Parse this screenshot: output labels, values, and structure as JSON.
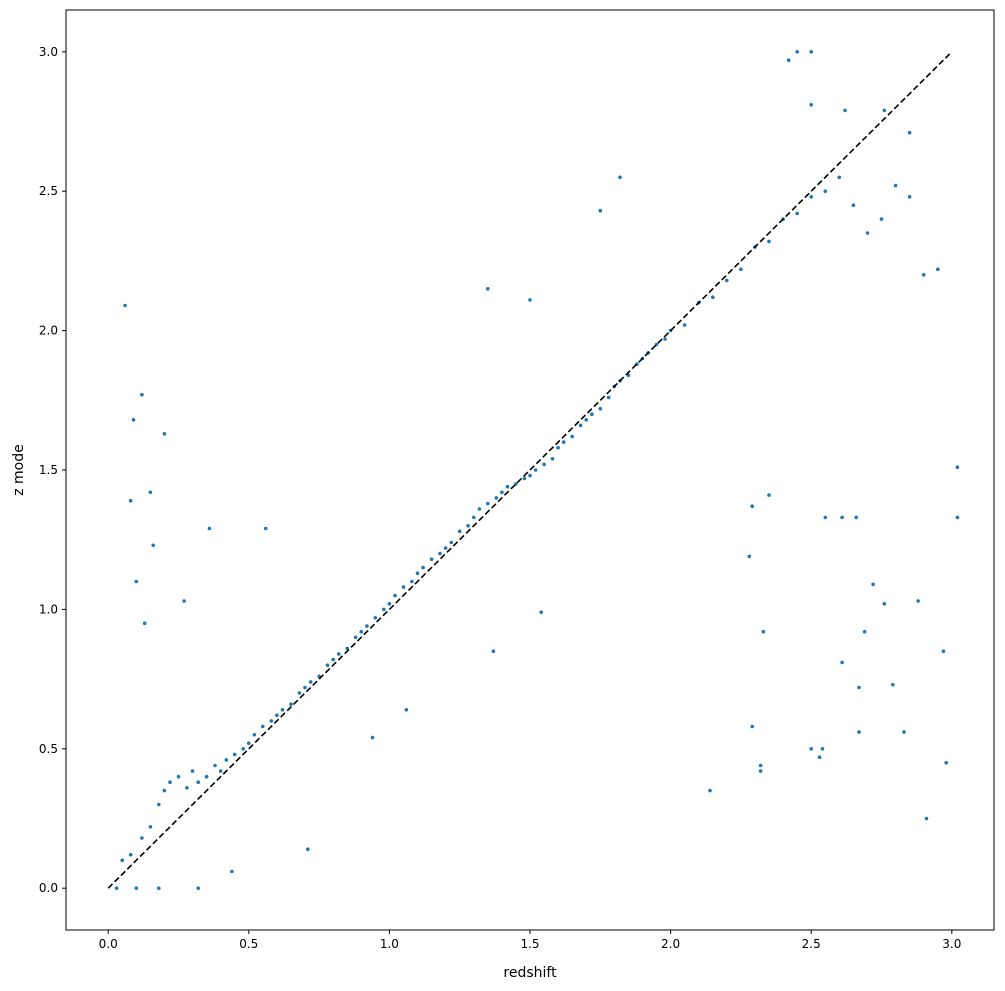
{
  "chart_data": {
    "type": "scatter",
    "title": "",
    "xlabel": "redshift",
    "ylabel": "z mode",
    "xlim": [
      -0.15,
      3.15
    ],
    "ylim": [
      -0.15,
      3.15
    ],
    "x_ticks": [
      0.0,
      0.5,
      1.0,
      1.5,
      2.0,
      2.5,
      3.0
    ],
    "y_ticks": [
      0.0,
      0.5,
      1.0,
      1.5,
      2.0,
      2.5,
      3.0
    ],
    "x_tick_labels": [
      "0.0",
      "0.5",
      "1.0",
      "1.5",
      "2.0",
      "2.5",
      "3.0"
    ],
    "y_tick_labels": [
      "0.0",
      "0.5",
      "1.0",
      "1.5",
      "2.0",
      "2.5",
      "3.0"
    ],
    "grid": false,
    "legend": "none",
    "series": [
      {
        "kind": "points",
        "color": "#1f77b4",
        "points": [
          [
            0.05,
            0.1
          ],
          [
            0.08,
            0.12
          ],
          [
            0.12,
            0.18
          ],
          [
            0.15,
            0.22
          ],
          [
            0.18,
            0.3
          ],
          [
            0.2,
            0.35
          ],
          [
            0.22,
            0.38
          ],
          [
            0.25,
            0.4
          ],
          [
            0.28,
            0.36
          ],
          [
            0.3,
            0.42
          ],
          [
            0.32,
            0.38
          ],
          [
            0.35,
            0.4
          ],
          [
            0.38,
            0.44
          ],
          [
            0.4,
            0.42
          ],
          [
            0.42,
            0.46
          ],
          [
            0.45,
            0.48
          ],
          [
            0.48,
            0.5
          ],
          [
            0.5,
            0.52
          ],
          [
            0.52,
            0.55
          ],
          [
            0.55,
            0.58
          ],
          [
            0.58,
            0.6
          ],
          [
            0.6,
            0.62
          ],
          [
            0.62,
            0.64
          ],
          [
            0.65,
            0.66
          ],
          [
            0.68,
            0.7
          ],
          [
            0.7,
            0.72
          ],
          [
            0.72,
            0.74
          ],
          [
            0.75,
            0.76
          ],
          [
            0.78,
            0.8
          ],
          [
            0.8,
            0.82
          ],
          [
            0.82,
            0.84
          ],
          [
            0.85,
            0.86
          ],
          [
            0.88,
            0.9
          ],
          [
            0.9,
            0.92
          ],
          [
            0.92,
            0.94
          ],
          [
            0.95,
            0.97
          ],
          [
            0.98,
            1.0
          ],
          [
            1.0,
            1.02
          ],
          [
            1.02,
            1.05
          ],
          [
            1.05,
            1.08
          ],
          [
            1.08,
            1.1
          ],
          [
            1.1,
            1.13
          ],
          [
            1.12,
            1.15
          ],
          [
            1.15,
            1.18
          ],
          [
            1.18,
            1.2
          ],
          [
            1.2,
            1.22
          ],
          [
            1.22,
            1.24
          ],
          [
            1.25,
            1.28
          ],
          [
            1.28,
            1.3
          ],
          [
            1.3,
            1.33
          ],
          [
            1.32,
            1.36
          ],
          [
            1.35,
            1.38
          ],
          [
            1.38,
            1.4
          ],
          [
            1.4,
            1.42
          ],
          [
            1.42,
            1.44
          ],
          [
            1.45,
            1.45
          ],
          [
            1.48,
            1.47
          ],
          [
            1.5,
            1.48
          ],
          [
            1.52,
            1.5
          ],
          [
            1.55,
            1.52
          ],
          [
            1.58,
            1.54
          ],
          [
            1.6,
            1.58
          ],
          [
            1.62,
            1.6
          ],
          [
            1.65,
            1.62
          ],
          [
            1.68,
            1.66
          ],
          [
            1.7,
            1.68
          ],
          [
            1.72,
            1.7
          ],
          [
            1.75,
            1.72
          ],
          [
            1.78,
            1.76
          ],
          [
            1.8,
            1.8
          ],
          [
            1.82,
            1.82
          ],
          [
            1.85,
            1.84
          ],
          [
            1.88,
            1.88
          ],
          [
            1.9,
            1.9
          ],
          [
            1.92,
            1.92
          ],
          [
            1.95,
            1.95
          ],
          [
            1.98,
            1.97
          ],
          [
            2.0,
            2.0
          ],
          [
            2.05,
            2.02
          ],
          [
            2.1,
            2.1
          ],
          [
            2.15,
            2.12
          ],
          [
            2.2,
            2.18
          ],
          [
            2.25,
            2.22
          ],
          [
            2.3,
            2.3
          ],
          [
            2.35,
            2.32
          ],
          [
            2.4,
            2.4
          ],
          [
            2.45,
            2.42
          ],
          [
            2.5,
            2.48
          ],
          [
            2.55,
            2.5
          ],
          [
            2.6,
            2.55
          ],
          [
            2.65,
            2.45
          ],
          [
            2.7,
            2.35
          ],
          [
            2.75,
            2.4
          ],
          [
            2.8,
            2.52
          ],
          [
            2.85,
            2.48
          ],
          [
            2.9,
            2.2
          ],
          [
            2.95,
            2.22
          ],
          [
            0.06,
            2.09
          ],
          [
            0.12,
            1.77
          ],
          [
            0.09,
            1.68
          ],
          [
            0.2,
            1.63
          ],
          [
            0.15,
            1.42
          ],
          [
            0.08,
            1.39
          ],
          [
            0.16,
            1.23
          ],
          [
            0.36,
            1.29
          ],
          [
            0.56,
            1.29
          ],
          [
            0.27,
            1.03
          ],
          [
            0.1,
            1.1
          ],
          [
            0.13,
            0.95
          ],
          [
            1.35,
            2.15
          ],
          [
            1.5,
            2.11
          ],
          [
            1.82,
            2.55
          ],
          [
            1.75,
            2.43
          ],
          [
            2.42,
            2.97
          ],
          [
            2.45,
            3.0
          ],
          [
            2.5,
            3.0
          ],
          [
            2.5,
            2.81
          ],
          [
            2.62,
            2.79
          ],
          [
            2.76,
            2.79
          ],
          [
            2.85,
            2.71
          ],
          [
            3.02,
            1.51
          ],
          [
            3.02,
            1.33
          ],
          [
            2.97,
            0.85
          ],
          [
            2.98,
            0.45
          ],
          [
            2.91,
            0.25
          ],
          [
            2.83,
            0.56
          ],
          [
            2.79,
            0.73
          ],
          [
            2.69,
            0.92
          ],
          [
            2.67,
            0.56
          ],
          [
            2.67,
            0.72
          ],
          [
            2.61,
            0.81
          ],
          [
            2.53,
            0.47
          ],
          [
            2.54,
            0.5
          ],
          [
            2.5,
            0.5
          ],
          [
            2.32,
            0.44
          ],
          [
            2.32,
            0.42
          ],
          [
            2.29,
            0.58
          ],
          [
            2.14,
            0.35
          ],
          [
            2.33,
            0.92
          ],
          [
            2.88,
            1.03
          ],
          [
            2.76,
            1.02
          ],
          [
            2.72,
            1.09
          ],
          [
            2.66,
            1.33
          ],
          [
            2.55,
            1.33
          ],
          [
            2.61,
            1.33
          ],
          [
            2.28,
            1.19
          ],
          [
            2.29,
            1.37
          ],
          [
            2.35,
            1.41
          ],
          [
            1.54,
            0.99
          ],
          [
            1.37,
            0.85
          ],
          [
            1.06,
            0.64
          ],
          [
            0.94,
            0.54
          ],
          [
            0.71,
            0.14
          ],
          [
            0.44,
            0.06
          ],
          [
            0.32,
            0.0
          ],
          [
            0.18,
            0.0
          ],
          [
            0.1,
            0.0
          ],
          [
            0.03,
            0.0
          ]
        ]
      },
      {
        "kind": "reference-line",
        "color": "#000000",
        "dashed": true,
        "from": [
          0.0,
          0.0
        ],
        "to": [
          3.0,
          3.0
        ]
      }
    ]
  }
}
